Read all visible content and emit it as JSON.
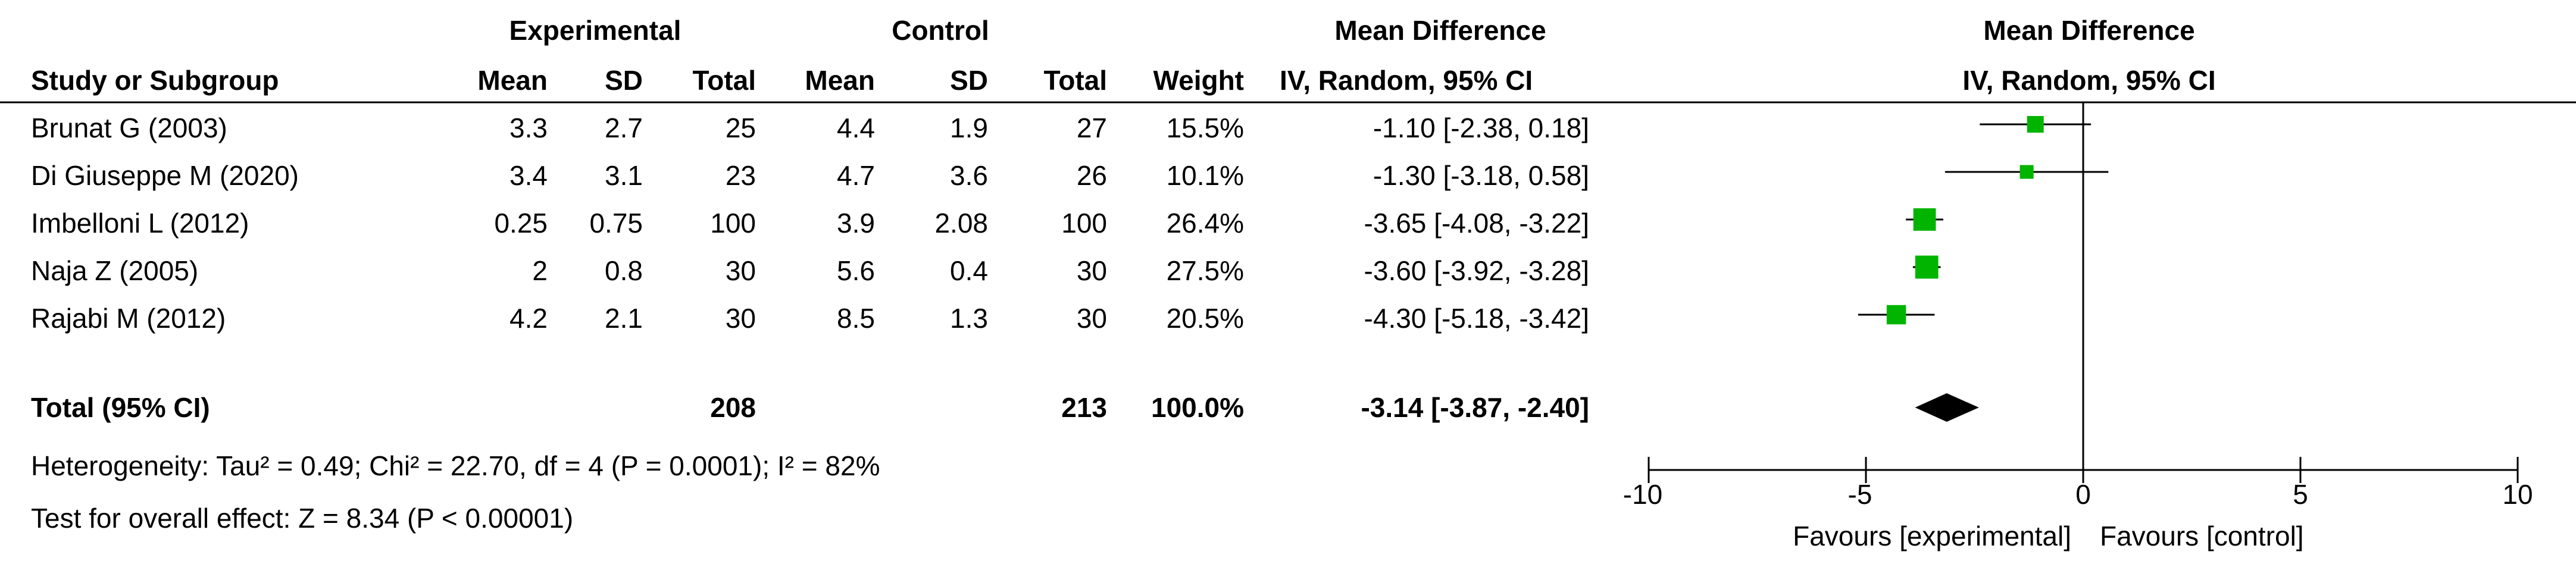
{
  "table": {
    "group_headers": {
      "experimental": "Experimental",
      "control": "Control"
    },
    "columns": {
      "study": "Study or Subgroup",
      "exp_mean": "Mean",
      "exp_sd": "SD",
      "exp_total": "Total",
      "ctl_mean": "Mean",
      "ctl_sd": "SD",
      "ctl_total": "Total",
      "weight": "Weight",
      "md_title": "Mean Difference",
      "md_method": "IV, Random, 95% CI"
    },
    "rows": [
      {
        "study": "Brunat G (2003)",
        "exp_mean": "3.3",
        "exp_sd": "2.7",
        "exp_total": "25",
        "ctl_mean": "4.4",
        "ctl_sd": "1.9",
        "ctl_total": "27",
        "weight": "15.5%",
        "ci": "-1.10 [-2.38, 0.18]"
      },
      {
        "study": "Di Giuseppe M (2020)",
        "exp_mean": "3.4",
        "exp_sd": "3.1",
        "exp_total": "23",
        "ctl_mean": "4.7",
        "ctl_sd": "3.6",
        "ctl_total": "26",
        "weight": "10.1%",
        "ci": "-1.30 [-3.18, 0.58]"
      },
      {
        "study": "Imbelloni L (2012)",
        "exp_mean": "0.25",
        "exp_sd": "0.75",
        "exp_total": "100",
        "ctl_mean": "3.9",
        "ctl_sd": "2.08",
        "ctl_total": "100",
        "weight": "26.4%",
        "ci": "-3.65 [-4.08, -3.22]"
      },
      {
        "study": "Naja Z (2005)",
        "exp_mean": "2",
        "exp_sd": "0.8",
        "exp_total": "30",
        "ctl_mean": "5.6",
        "ctl_sd": "0.4",
        "ctl_total": "30",
        "weight": "27.5%",
        "ci": "-3.60 [-3.92, -3.28]"
      },
      {
        "study": "Rajabi M (2012)",
        "exp_mean": "4.2",
        "exp_sd": "2.1",
        "exp_total": "30",
        "ctl_mean": "8.5",
        "ctl_sd": "1.3",
        "ctl_total": "30",
        "weight": "20.5%",
        "ci": "-4.30 [-5.18, -3.42]"
      }
    ],
    "total": {
      "label": "Total (95% CI)",
      "exp_total": "208",
      "ctl_total": "213",
      "weight": "100.0%",
      "ci": "-3.14 [-3.87, -2.40]"
    },
    "heterogeneity": "Heterogeneity: Tau² = 0.49; Chi² = 22.70, df = 4 (P = 0.0001); I² = 82%",
    "overall_effect": "Test for overall effect: Z = 8.34 (P < 0.00001)"
  },
  "chart_data": {
    "type": "forest",
    "title": "Mean Difference",
    "subtitle": "IV, Random, 95% CI",
    "xlim": [
      -10,
      10
    ],
    "xticks": [
      "-10",
      "-5",
      "0",
      "5",
      "10"
    ],
    "xtick_values": [
      -10,
      -5,
      0,
      5,
      10
    ],
    "favours_left": "Favours [experimental]",
    "favours_right": "Favours [control]",
    "studies": [
      {
        "label": "Brunat G (2003)",
        "md": -1.1,
        "lo": -2.38,
        "hi": 0.18,
        "weight": 15.5
      },
      {
        "label": "Di Giuseppe M (2020)",
        "md": -1.3,
        "lo": -3.18,
        "hi": 0.58,
        "weight": 10.1
      },
      {
        "label": "Imbelloni L (2012)",
        "md": -3.65,
        "lo": -4.08,
        "hi": -3.22,
        "weight": 26.4
      },
      {
        "label": "Naja Z (2005)",
        "md": -3.6,
        "lo": -3.92,
        "hi": -3.28,
        "weight": 27.5
      },
      {
        "label": "Rajabi M (2012)",
        "md": -4.3,
        "lo": -5.18,
        "hi": -3.42,
        "weight": 20.5
      }
    ],
    "pooled": {
      "md": -3.14,
      "lo": -3.87,
      "hi": -2.4
    },
    "colors": {
      "marker": "#00b400",
      "line": "#000000"
    }
  }
}
